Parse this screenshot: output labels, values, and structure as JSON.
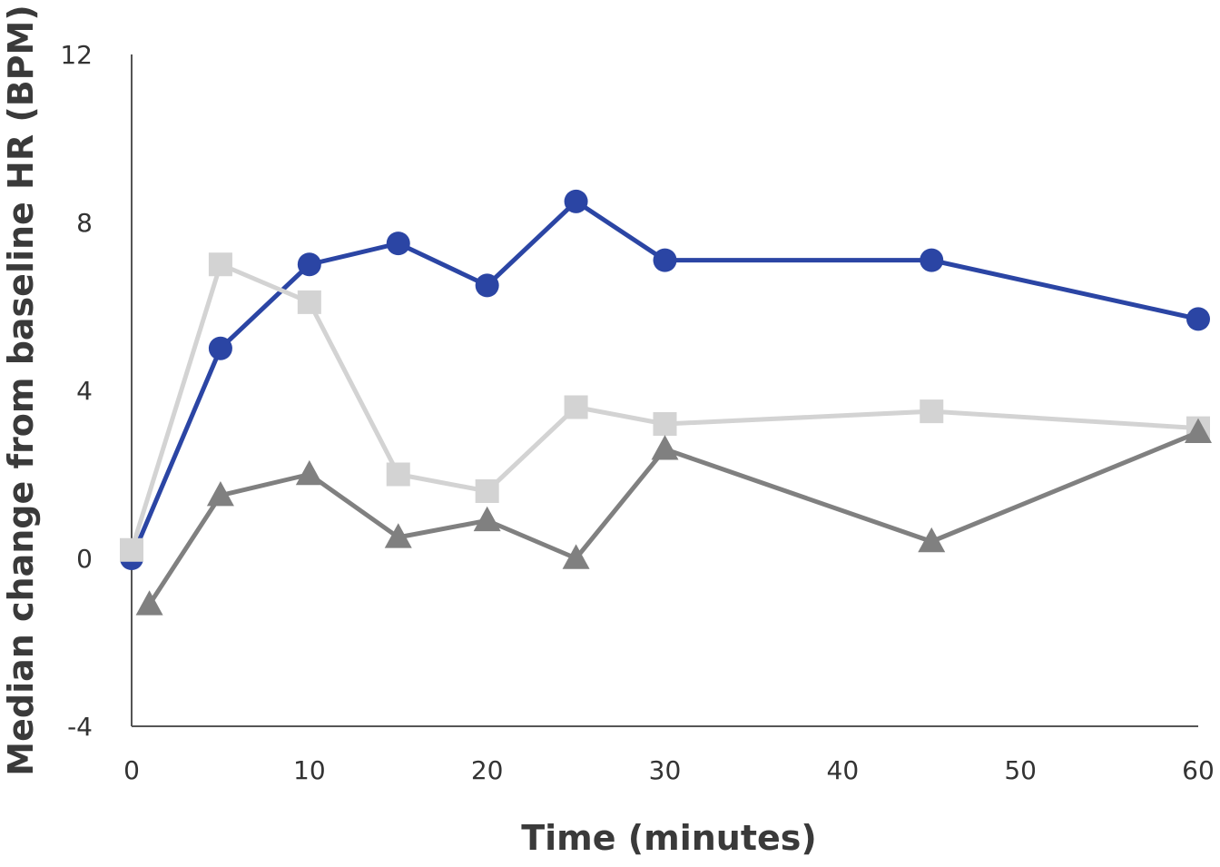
{
  "chart_data": {
    "type": "line",
    "xlabel": "Time (minutes)",
    "ylabel": "Median change from baseline HR (BPM)",
    "xlim": [
      0,
      60
    ],
    "ylim": [
      -4,
      12
    ],
    "x_ticks": [
      0,
      10,
      20,
      30,
      40,
      50,
      60
    ],
    "y_ticks": [
      -4,
      0,
      4,
      8,
      12
    ],
    "grid": false,
    "series": [
      {
        "marker": "circle",
        "color": "#2b45a4",
        "points": [
          [
            0,
            0
          ],
          [
            5,
            5
          ],
          [
            10,
            7
          ],
          [
            15,
            7.5
          ],
          [
            20,
            6.5
          ],
          [
            25,
            8.5
          ],
          [
            30,
            7.1
          ],
          [
            45,
            7.1
          ],
          [
            60,
            5.7
          ]
        ]
      },
      {
        "marker": "square",
        "color": "#d3d3d3",
        "points": [
          [
            0,
            0.2
          ],
          [
            5,
            7
          ],
          [
            10,
            6.1
          ],
          [
            15,
            2
          ],
          [
            20,
            1.6
          ],
          [
            25,
            3.6
          ],
          [
            30,
            3.2
          ],
          [
            45,
            3.5
          ],
          [
            60,
            3.1
          ]
        ]
      },
      {
        "marker": "triangle",
        "color": "#808080",
        "points": [
          [
            1,
            -1.1
          ],
          [
            5,
            1.5
          ],
          [
            10,
            2
          ],
          [
            15,
            0.5
          ],
          [
            20,
            0.9
          ],
          [
            25,
            0
          ],
          [
            30,
            2.6
          ],
          [
            45,
            0.4
          ],
          [
            60,
            3
          ]
        ]
      }
    ]
  }
}
